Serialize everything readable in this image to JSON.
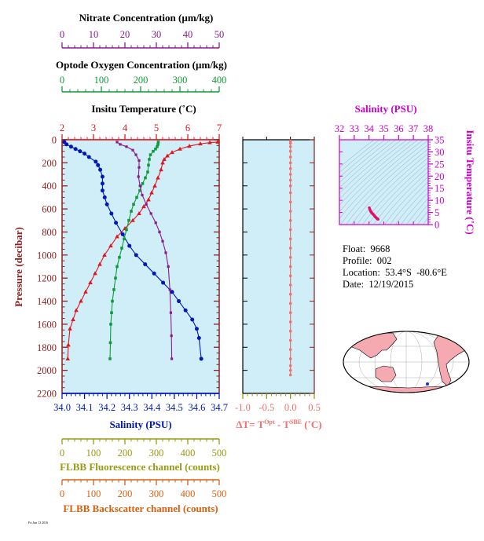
{
  "colors": {
    "nitrate": "#8b1a8b",
    "oxygen": "#119a3a",
    "temperature": "#e0161e",
    "salinity": "#0018b8",
    "delta_t": "#f07070",
    "fluorescence": "#9a9a10",
    "backscatter": "#d86010",
    "panel_bg": "#cfeef8",
    "pressure_axis": "#8b2020",
    "ts_axis": "#cc00cc"
  },
  "float_info": {
    "float": "Float:  9668",
    "profile": "Profile:  002",
    "location": "Location:  53.4°S  -80.6°E",
    "date": "Date:  12/19/2015"
  },
  "stamp": "Fri Jun 13 2016",
  "chart_data": [
    {
      "type": "line",
      "panel": "main-profile",
      "ylabel": "Pressure (decibar)",
      "ylim": [
        2200,
        0
      ],
      "y_ticks": [
        0,
        200,
        400,
        600,
        800,
        1000,
        1200,
        1400,
        1600,
        1800,
        2000,
        2200
      ],
      "axes": {
        "nitrate": {
          "label": "Nitrate Concentration (µm/kg)",
          "lim": [
            0,
            50
          ],
          "ticks": [
            0,
            10,
            20,
            30,
            40,
            50
          ]
        },
        "oxygen": {
          "label": "Optode Oxygen Concentration (µm/kg)",
          "lim": [
            0,
            400
          ],
          "ticks": [
            0,
            100,
            200,
            300,
            400
          ]
        },
        "temperature": {
          "label": "Insitu Temperature (˚C)",
          "lim": [
            2,
            7
          ],
          "ticks": [
            2,
            3,
            4,
            5,
            6,
            7
          ]
        },
        "salinity": {
          "label": "Salinity (PSU)",
          "lim": [
            34.0,
            34.7
          ],
          "ticks": [
            "34.0",
            "34.1",
            "34.2",
            "34.3",
            "34.4",
            "34.5",
            "34.6",
            "34.7"
          ]
        },
        "fluorescence": {
          "label": "FLBB Fluorescence channel (counts)",
          "lim": [
            0,
            500
          ],
          "ticks": [
            0,
            100,
            200,
            300,
            400,
            500
          ]
        },
        "backscatter": {
          "label": "FLBB Backscatter channel (counts)",
          "lim": [
            0,
            500
          ],
          "ticks": [
            0,
            100,
            200,
            300,
            400,
            500
          ]
        }
      },
      "series": [
        {
          "key": "temperature",
          "x": [
            6.95,
            6.7,
            6.4,
            6.05,
            5.75,
            5.5,
            5.35,
            5.25,
            5.2,
            5.15,
            5.05,
            4.95,
            4.85,
            4.75,
            4.6,
            4.45,
            4.25,
            4.0,
            3.75,
            3.55,
            3.35,
            3.2,
            3.05,
            2.9,
            2.75,
            2.6,
            2.45,
            2.35,
            2.25,
            2.2,
            2.18
          ],
          "y": [
            20,
            25,
            35,
            55,
            80,
            110,
            140,
            170,
            200,
            260,
            330,
            400,
            460,
            520,
            580,
            640,
            700,
            770,
            840,
            920,
            1000,
            1080,
            1160,
            1240,
            1320,
            1400,
            1480,
            1560,
            1640,
            1780,
            1900
          ]
        },
        {
          "key": "salinity",
          "x": [
            34.01,
            34.02,
            34.04,
            34.06,
            34.08,
            34.1,
            34.12,
            34.15,
            34.16,
            34.17,
            34.18,
            34.18,
            34.18,
            34.19,
            34.2,
            34.22,
            34.24,
            34.27,
            34.3,
            34.33,
            34.37,
            34.41,
            34.45,
            34.49,
            34.52,
            34.55,
            34.58,
            34.6,
            34.61,
            34.62
          ],
          "y": [
            20,
            40,
            60,
            80,
            100,
            120,
            150,
            190,
            220,
            260,
            320,
            380,
            440,
            500,
            560,
            640,
            720,
            820,
            920,
            1000,
            1080,
            1160,
            1240,
            1320,
            1400,
            1480,
            1560,
            1640,
            1720,
            1900
          ]
        },
        {
          "key": "oxygen",
          "x": [
            245,
            244,
            242,
            238,
            232,
            225,
            222,
            220,
            218,
            212,
            205,
            198,
            190,
            182,
            176,
            170,
            164,
            158,
            152,
            146,
            140,
            136,
            132,
            128,
            126,
            124,
            123,
            122
          ],
          "y": [
            20,
            40,
            60,
            80,
            100,
            130,
            170,
            220,
            280,
            330,
            380,
            440,
            500,
            560,
            620,
            700,
            780,
            860,
            940,
            1020,
            1100,
            1200,
            1300,
            1400,
            1500,
            1600,
            1760,
            1900
          ]
        },
        {
          "key": "nitrate",
          "x": [
            17.5,
            18.5,
            20.5,
            22.5,
            23.5,
            24.5,
            24.5,
            24.3,
            24.8,
            25.5,
            26.8,
            28.3,
            29.8,
            31.0,
            32.0,
            33.0,
            33.8,
            34.3,
            34.6,
            34.8,
            34.9
          ],
          "y": [
            20,
            40,
            60,
            90,
            130,
            180,
            240,
            320,
            400,
            480,
            560,
            640,
            720,
            800,
            880,
            980,
            1100,
            1300,
            1500,
            1700,
            1900
          ]
        }
      ]
    },
    {
      "type": "scatter",
      "panel": "delta-t",
      "xlabel": "ΔT= T^Opt - T^SBE (˚C)",
      "xlabel_parts": {
        "main": "ΔT= T",
        "sup1": "Opt",
        "mid": " - T",
        "sup2": "SBE",
        "end": " (˚C)"
      },
      "xlim": [
        -1.0,
        0.5
      ],
      "ticks": [
        "-1.0",
        "-0.5",
        "0.0",
        "0.5"
      ],
      "ylim": [
        2200,
        0
      ],
      "x": [
        0.0,
        0.0,
        0.0,
        0.0,
        0.0,
        0.0,
        0.0,
        0.0,
        0.0,
        0.0,
        0.0,
        0.0,
        0.0,
        0.0,
        0.0,
        0.0,
        0.0,
        0.0,
        0.0,
        0.0,
        0.0,
        0.0,
        0.0,
        0.0,
        0.0,
        0.0,
        0.0,
        0.0,
        0.0,
        0.0,
        0.0,
        0.0
      ],
      "y": [
        10,
        30,
        60,
        100,
        150,
        200,
        250,
        300,
        350,
        400,
        460,
        540,
        620,
        700,
        780,
        860,
        940,
        1020,
        1100,
        1180,
        1260,
        1340,
        1420,
        1500,
        1580,
        1660,
        1740,
        1820,
        1900,
        1960,
        2000,
        2040
      ]
    },
    {
      "type": "scatter",
      "panel": "ts-diagram",
      "title": "Salinity (PSU)",
      "xlim": [
        32,
        38
      ],
      "x_ticks": [
        32,
        33,
        34,
        35,
        36,
        37,
        38
      ],
      "ylabel": "Insitu Temperature (˚C)",
      "ylim": [
        0,
        35
      ],
      "y_ticks": [
        0,
        5,
        10,
        15,
        20,
        25,
        30,
        35
      ],
      "x": [
        34.02,
        34.06,
        34.1,
        34.14,
        34.18,
        34.22,
        34.27,
        34.32,
        34.37,
        34.42,
        34.47,
        34.52,
        34.57,
        34.61
      ],
      "y": [
        6.9,
        6.2,
        5.6,
        5.2,
        4.9,
        4.6,
        4.3,
        4.0,
        3.6,
        3.2,
        2.9,
        2.6,
        2.35,
        2.2
      ]
    }
  ]
}
